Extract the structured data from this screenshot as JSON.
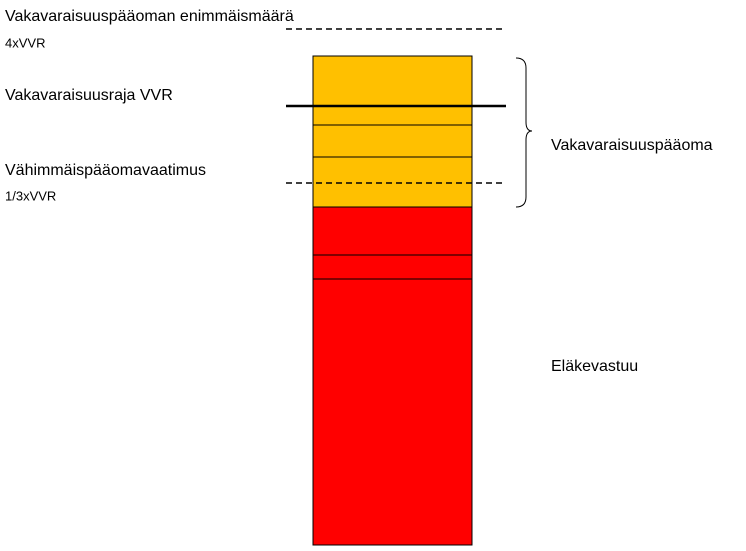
{
  "labels": {
    "max_capital": "Vakavaraisuuspääoman enimmäismäärä",
    "max_capital_formula": "4xVVR",
    "solvency_limit": "Vakavaraisuusraja VVR",
    "min_capital": "Vähimmäispääomavaatimus",
    "min_capital_formula": "1/3xVVR",
    "solvency_capital": "Vakavaraisuuspääoma",
    "pension_liability": "Eläkevastuu"
  }
}
